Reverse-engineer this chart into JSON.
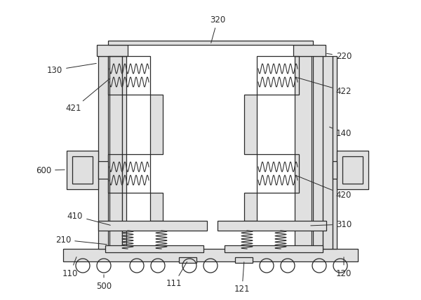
{
  "bg_color": "#ffffff",
  "line_color": "#2a2a2a",
  "light_fill": "#e0e0e0",
  "mid_fill": "#c8c8c8",
  "figsize": [
    6.0,
    4.28
  ],
  "dpi": 100
}
